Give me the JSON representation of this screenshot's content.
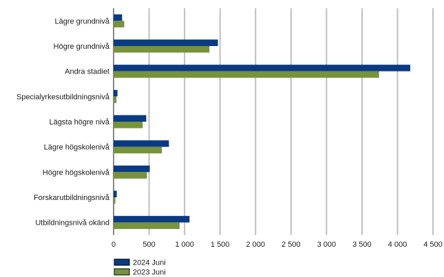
{
  "chart_data": {
    "type": "bar",
    "orientation": "horizontal",
    "categories": [
      "Lägre grundnivå",
      "Högre grundnivå",
      "Andra stadiet",
      "Specialyrkesutbildningsnivå",
      "Lägsta högre nivå",
      "Lägre högskolenivå",
      "Högre högskolenivå",
      "Forskarutbildningsnivå",
      "Utbildningsnivå okänd"
    ],
    "series": [
      {
        "name": "2024 Juni",
        "color": "#0a3a82",
        "values": [
          120,
          1470,
          4180,
          55,
          460,
          780,
          510,
          45,
          1070
        ]
      },
      {
        "name": "2023 Juni",
        "color": "#77933c",
        "values": [
          150,
          1350,
          3740,
          40,
          410,
          680,
          470,
          25,
          930
        ]
      }
    ],
    "xlim": [
      0,
      4500
    ],
    "xticks": [
      0,
      500,
      1000,
      1500,
      2000,
      2500,
      3000,
      3500,
      4000,
      4500
    ],
    "xtick_labels": [
      "0",
      "500",
      "1 000",
      "1 500",
      "2 000",
      "2 500",
      "3 000",
      "3 500",
      "4 000",
      "4 500"
    ],
    "grid": true,
    "legend_position": "bottom-left",
    "title": "",
    "xlabel": "",
    "ylabel": ""
  }
}
